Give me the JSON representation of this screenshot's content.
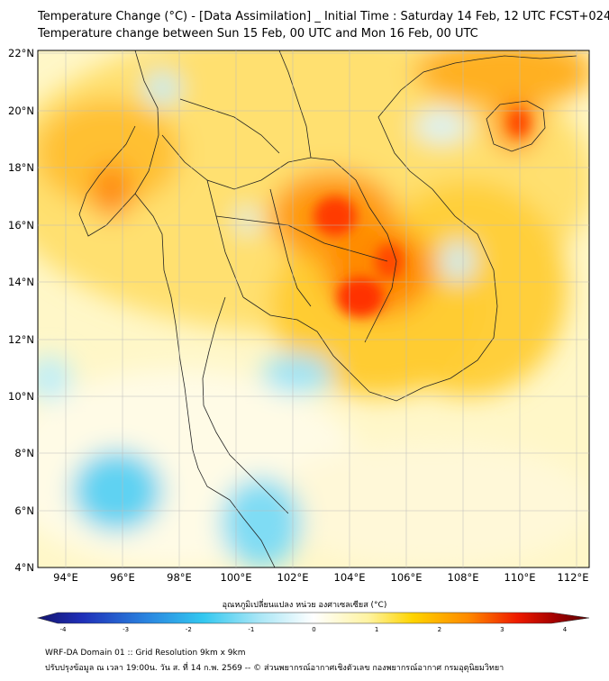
{
  "title_line1": "Temperature Change (°C) - [Data Assimilation] _ Initial Time : Saturday 14 Feb, 12 UTC FCST+024",
  "title_line2": "Temperature change between Sun 15 Feb, 00 UTC and Mon 16 Feb, 00 UTC",
  "lat_labels": [
    "22°N",
    "20°N",
    "18°N",
    "16°N",
    "14°N",
    "12°N",
    "10°N",
    "8°N",
    "6°N",
    "4°N"
  ],
  "lon_labels": [
    "94°E",
    "96°E",
    "98°E",
    "100°E",
    "102°E",
    "104°E",
    "106°E",
    "108°E",
    "110°E",
    "112°E"
  ],
  "colorbar": {
    "label": "อุณหภูมิเปลี่ยนแปลง หน่วย องศาเซลเซียส (°C)",
    "ticks": [
      "-4",
      "-3",
      "-2",
      "-1",
      "0",
      "1",
      "2",
      "3",
      "4"
    ],
    "min": -4,
    "max": 4
  },
  "footer_line1": "WRF-DA Domain 01 :: Grid Resolution 9km x 9km",
  "footer_line2": "ปรับปรุงข้อมูล ณ เวลา 19:00น. วัน ส. ที่ 14 ก.พ. 2569 -- © ส่วนพยากรณ์อากาศเชิงตัวเลข กองพยากรณ์อากาศ กรมอุตุนิยมวิทยา",
  "colors": {
    "cold_deep": "#1a1a80",
    "cold": "#33ccee",
    "neutral": "#ffffff",
    "warm": "#ffd700",
    "hot": "#ff2200",
    "hot_deep": "#6b0000"
  }
}
